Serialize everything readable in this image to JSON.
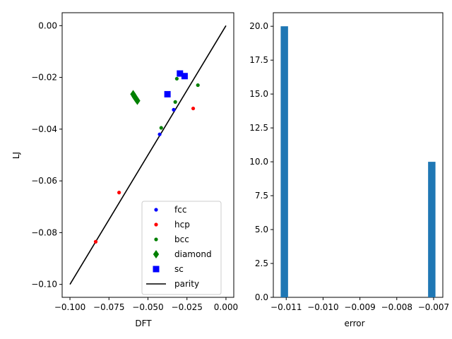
{
  "chart_data": [
    {
      "type": "scatter",
      "xlabel": "DFT",
      "ylabel": "LJ",
      "xlim": [
        -0.105,
        0.005
      ],
      "ylim": [
        -0.105,
        0.005
      ],
      "xticks": [
        "−0.100",
        "−0.075",
        "−0.050",
        "−0.025",
        "0.000"
      ],
      "yticks": [
        "−0.10",
        "−0.08",
        "−0.06",
        "−0.04",
        "−0.02",
        "0.00"
      ],
      "xtick_values": [
        -0.1,
        -0.075,
        -0.05,
        -0.025,
        0.0
      ],
      "ytick_values": [
        -0.1,
        -0.08,
        -0.06,
        -0.04,
        -0.02,
        0.0
      ],
      "legend_position": "lower-right",
      "series": [
        {
          "name": "fcc",
          "marker": "point",
          "color": "#0000ff",
          "x": [
            -0.0425,
            -0.0335
          ],
          "y": [
            -0.042,
            -0.0325
          ]
        },
        {
          "name": "hcp",
          "marker": "point",
          "color": "#ff0000",
          "x": [
            -0.0835,
            -0.0685,
            -0.021
          ],
          "y": [
            -0.0835,
            -0.0645,
            -0.032
          ]
        },
        {
          "name": "bcc",
          "marker": "point",
          "color": "#008000",
          "x": [
            -0.0415,
            -0.0325,
            -0.0315,
            -0.018
          ],
          "y": [
            -0.0395,
            -0.0295,
            -0.0205,
            -0.023
          ]
        },
        {
          "name": "diamond",
          "marker": "diamond",
          "color": "#008000",
          "x": [
            -0.0595,
            -0.0588,
            -0.0582,
            -0.0575,
            -0.0568
          ],
          "y": [
            -0.0265,
            -0.0272,
            -0.0278,
            -0.0284,
            -0.029
          ]
        },
        {
          "name": "sc",
          "marker": "square",
          "color": "#0000ff",
          "x": [
            -0.0375,
            -0.0295,
            -0.0265
          ],
          "y": [
            -0.0265,
            -0.0185,
            -0.0195
          ]
        },
        {
          "name": "parity",
          "marker": "line",
          "color": "#000000",
          "x": [
            -0.1,
            0.0
          ],
          "y": [
            -0.1,
            0.0
          ]
        }
      ]
    },
    {
      "type": "bar",
      "subtype": "histogram",
      "xlabel": "error",
      "ylabel": "",
      "xlim": [
        -0.01135,
        -0.00675
      ],
      "ylim": [
        0,
        21
      ],
      "xticks": [
        "−0.011",
        "−0.010",
        "−0.009",
        "−0.008",
        "−0.007"
      ],
      "yticks": [
        "0.0",
        "2.5",
        "5.0",
        "7.5",
        "10.0",
        "12.5",
        "15.0",
        "17.5",
        "20.0"
      ],
      "xtick_values": [
        -0.011,
        -0.01,
        -0.009,
        -0.008,
        -0.007
      ],
      "ytick_values": [
        0,
        2.5,
        5,
        7.5,
        10,
        12.5,
        15,
        17.5,
        20
      ],
      "color": "#1f77b4",
      "bins": [
        {
          "x0": -0.01115,
          "x1": -0.01095,
          "count": 20
        },
        {
          "x0": -0.00715,
          "x1": -0.00695,
          "count": 10
        }
      ]
    }
  ]
}
